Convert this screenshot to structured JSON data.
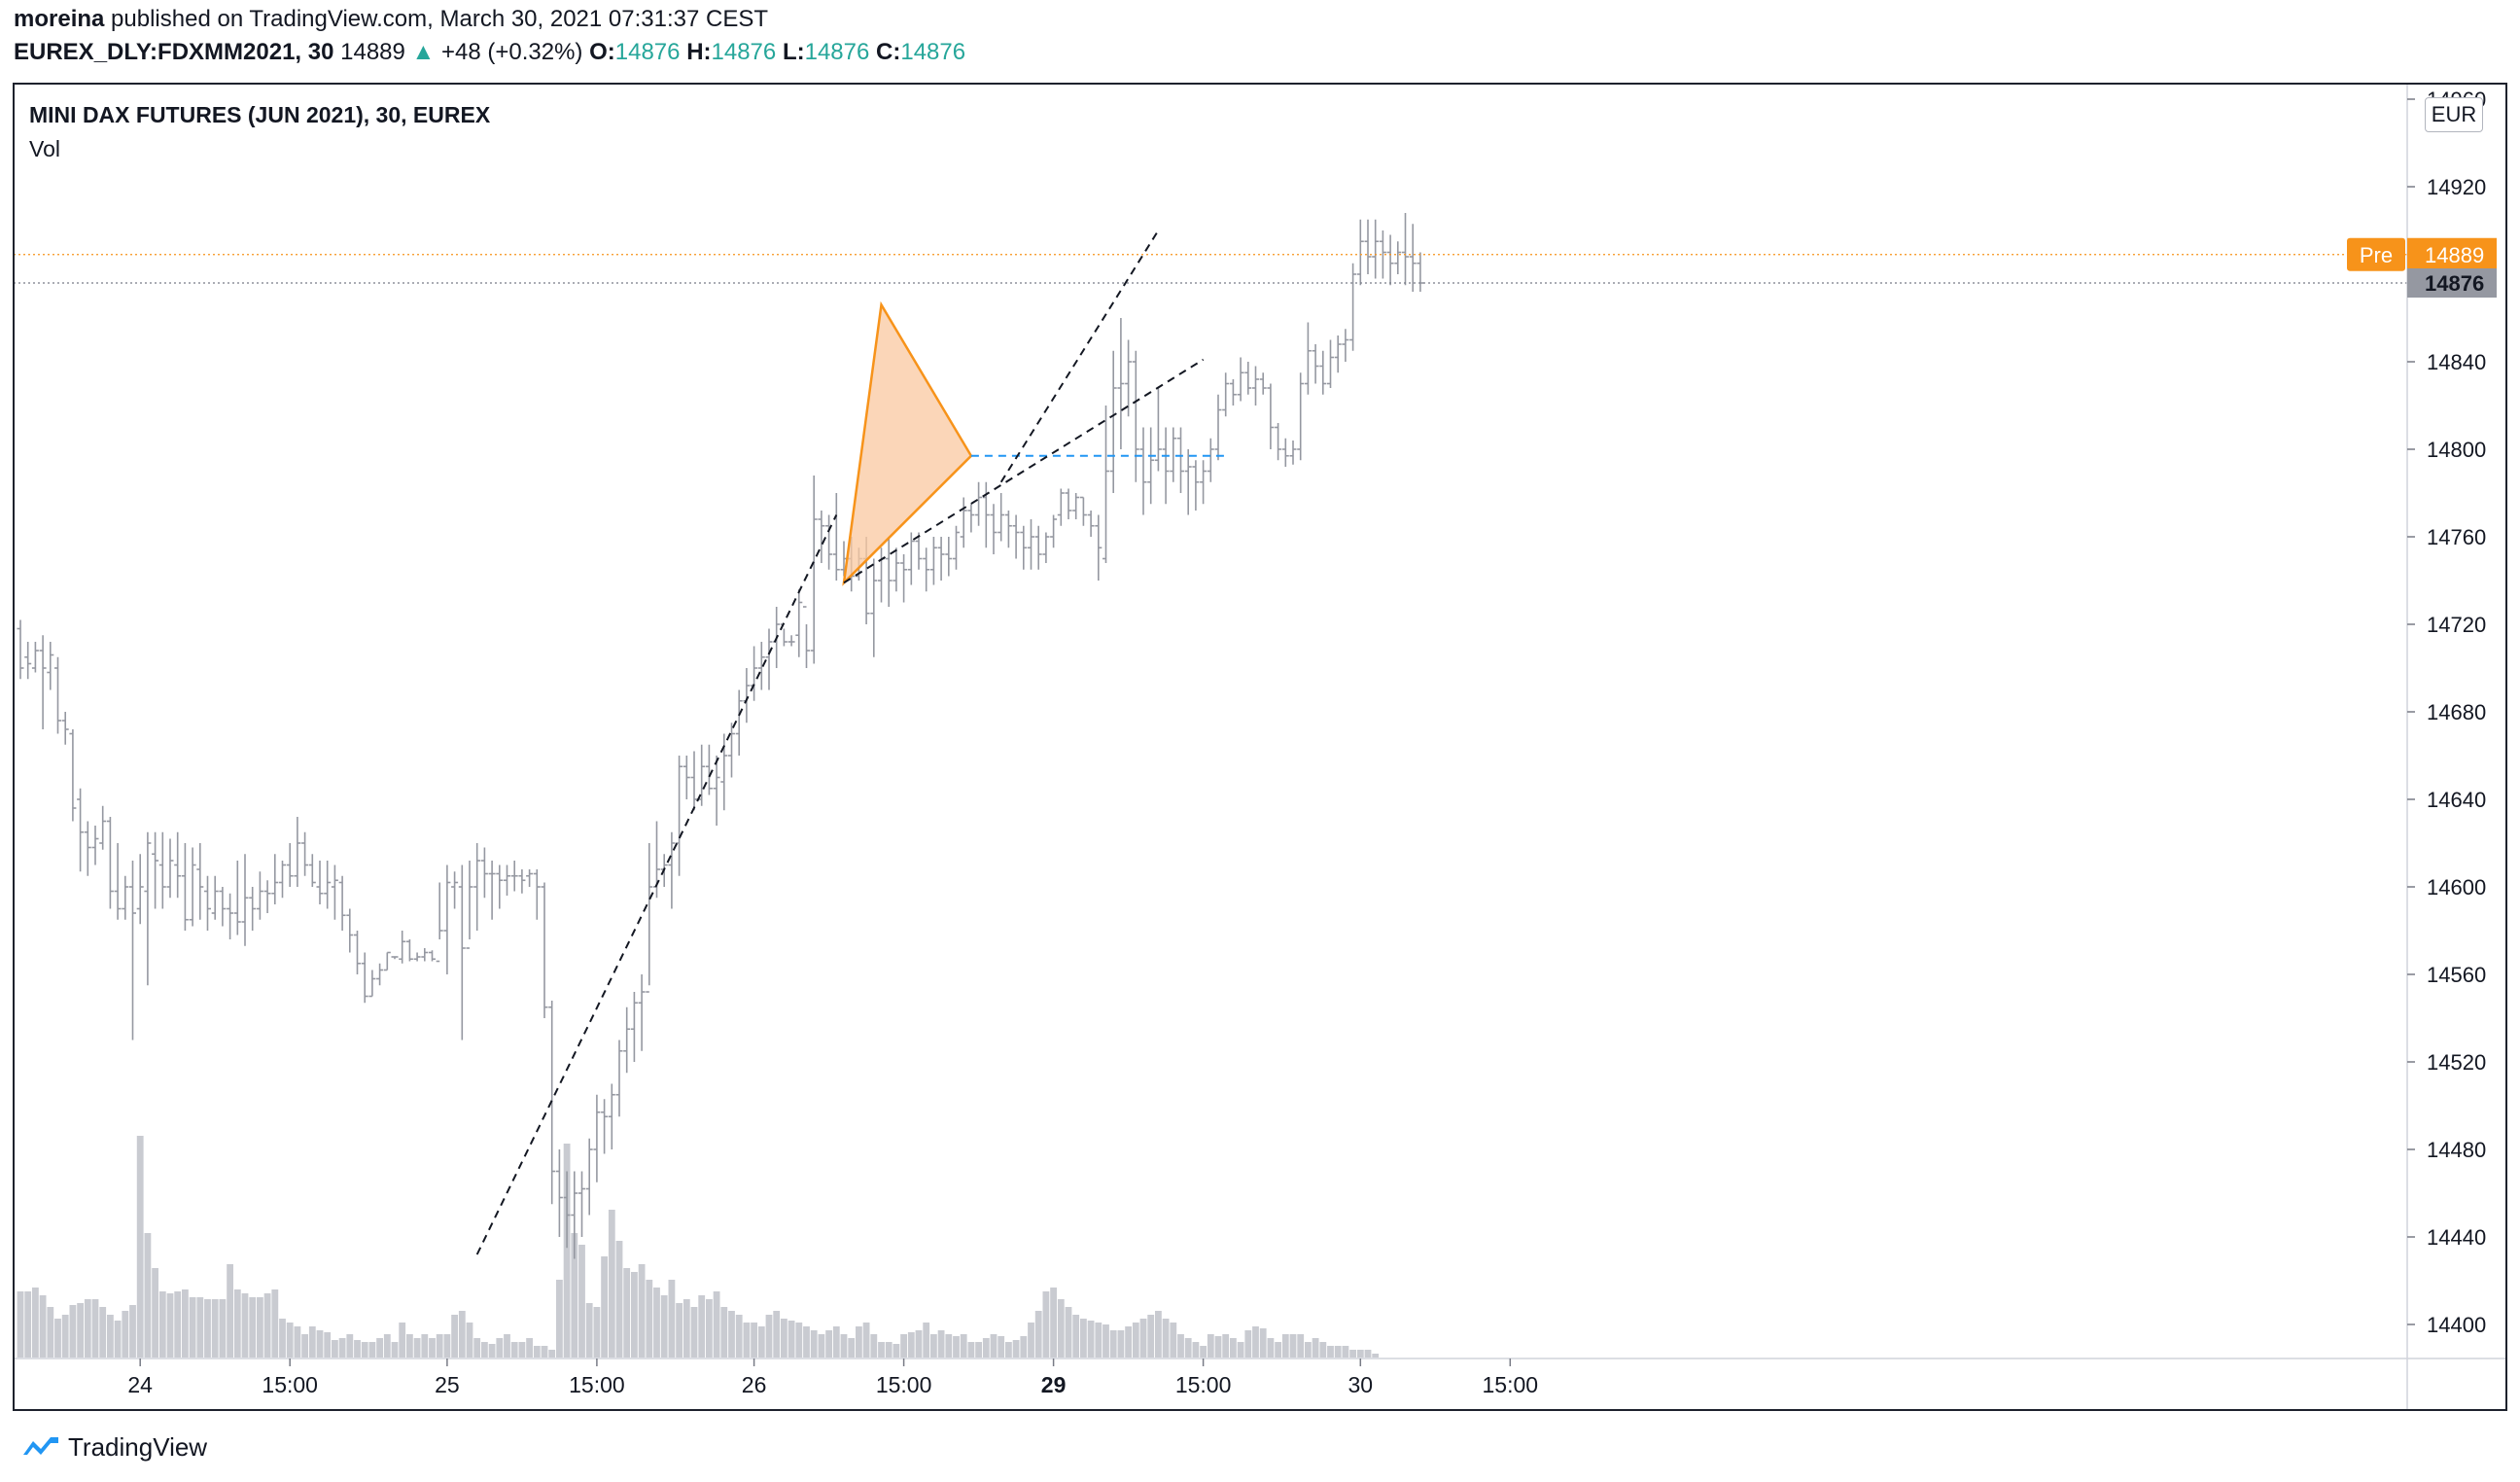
{
  "header": {
    "author": "moreina",
    "published_text": "published on TradingView.com, March 30, 2021 07:31:37 CEST",
    "symbol": "EUREX_DLY:FDXMM2021, 30",
    "last_price": "14889",
    "change": "+48 (+0.32%)",
    "o_label": "O:",
    "o_value": "14876",
    "h_label": "H:",
    "h_value": "14876",
    "l_label": "L:",
    "l_value": "14876",
    "c_label": "C:",
    "c_value": "14876"
  },
  "legend": {
    "title": "MINI DAX FUTURES (JUN 2021), 30, EUREX",
    "indicator": "Vol"
  },
  "currency": "EUR",
  "price_labels": {
    "pre_tag": "Pre",
    "pre_price": "14889",
    "last_price": "14876"
  },
  "brand": "TradingView",
  "colors": {
    "bar": "#9598a1",
    "volume": "#c9cbd1",
    "pre_line": "#f7931a",
    "last_tag": "#9598a1",
    "triangle_fill": "#f9c8a0",
    "triangle_stroke": "#f7931a",
    "horizontal_ray": "#2196f3",
    "trendline": "#131722",
    "accent_up": "#26a69a"
  },
  "chart_data": {
    "type": "bar",
    "subtype": "ohlc",
    "title": "MINI DAX FUTURES (JUN 2021), 30, EUREX",
    "currency": "EUR",
    "y_ticks": [
      14400,
      14440,
      14480,
      14520,
      14560,
      14600,
      14640,
      14680,
      14720,
      14760,
      14800,
      14840,
      14880,
      14920,
      14960
    ],
    "y_tick_labels": [
      "14400",
      "14440",
      "14480",
      "14520",
      "14560",
      "14600",
      "14640",
      "14680",
      "14720",
      "14760",
      "14800",
      "14840",
      "",
      "14920",
      "14960"
    ],
    "x_ticks": [
      {
        "label": "24",
        "bar": 16,
        "bold": false
      },
      {
        "label": "15:00",
        "bar": 36,
        "bold": false
      },
      {
        "label": "25",
        "bar": 57,
        "bold": false
      },
      {
        "label": "15:00",
        "bar": 77,
        "bold": false
      },
      {
        "label": "26",
        "bar": 98,
        "bold": false
      },
      {
        "label": "15:00",
        "bar": 118,
        "bold": false
      },
      {
        "label": "29",
        "bar": 138,
        "bold": true
      },
      {
        "label": "15:00",
        "bar": 158,
        "bold": false
      },
      {
        "label": "30",
        "bar": 179,
        "bold": false
      },
      {
        "label": "15:00",
        "bar": 199,
        "bold": false
      }
    ],
    "ohlc": [
      [
        14718,
        14700,
        14722,
        14695
      ],
      [
        14705,
        14702,
        14712,
        14695
      ],
      [
        14700,
        14708,
        14712,
        14698
      ],
      [
        14708,
        14700,
        14715,
        14672
      ],
      [
        14698,
        14706,
        14712,
        14690
      ],
      [
        14700,
        14676,
        14705,
        14670
      ],
      [
        14676,
        14672,
        14680,
        14665
      ],
      [
        14670,
        14636,
        14672,
        14630
      ],
      [
        14640,
        14625,
        14645,
        14607
      ],
      [
        14625,
        14618,
        14630,
        14605
      ],
      [
        14618,
        14622,
        14628,
        14610
      ],
      [
        14620,
        14630,
        14637,
        14617
      ],
      [
        14630,
        14598,
        14632,
        14590
      ],
      [
        14598,
        14590,
        14620,
        14585
      ],
      [
        14590,
        14600,
        14605,
        14585
      ],
      [
        14600,
        14588,
        14612,
        14530
      ],
      [
        14590,
        14600,
        14615,
        14583
      ],
      [
        14598,
        14620,
        14625,
        14555
      ],
      [
        14615,
        14612,
        14625,
        14590
      ],
      [
        14610,
        14600,
        14625,
        14590
      ],
      [
        14600,
        14612,
        14622,
        14595
      ],
      [
        14610,
        14605,
        14625,
        14595
      ],
      [
        14605,
        14585,
        14620,
        14580
      ],
      [
        14585,
        14610,
        14618,
        14582
      ],
      [
        14608,
        14600,
        14620,
        14585
      ],
      [
        14598,
        14590,
        14605,
        14580
      ],
      [
        14588,
        14598,
        14605,
        14585
      ],
      [
        14598,
        14590,
        14600,
        14582
      ],
      [
        14590,
        14588,
        14597,
        14576
      ],
      [
        14588,
        14584,
        14612,
        14578
      ],
      [
        14584,
        14595,
        14615,
        14573
      ],
      [
        14595,
        14590,
        14600,
        14580
      ],
      [
        14590,
        14598,
        14607,
        14585
      ],
      [
        14598,
        14597,
        14603,
        14588
      ],
      [
        14597,
        14602,
        14615,
        14592
      ],
      [
        14602,
        14610,
        14612,
        14595
      ],
      [
        14610,
        14605,
        14620,
        14600
      ],
      [
        14605,
        14620,
        14632,
        14600
      ],
      [
        14620,
        14610,
        14625,
        14605
      ],
      [
        14610,
        14602,
        14615,
        14600
      ],
      [
        14600,
        14597,
        14612,
        14592
      ],
      [
        14597,
        14602,
        14612,
        14590
      ],
      [
        14600,
        14603,
        14610,
        14585
      ],
      [
        14602,
        14587,
        14605,
        14580
      ],
      [
        14587,
        14578,
        14590,
        14570
      ],
      [
        14578,
        14565,
        14580,
        14560
      ],
      [
        14565,
        14550,
        14570,
        14547
      ],
      [
        14550,
        14558,
        14562,
        14550
      ],
      [
        14558,
        14562,
        14565,
        14555
      ],
      [
        14562,
        14570,
        14570,
        14562
      ],
      [
        14568,
        14568,
        14568,
        14567
      ],
      [
        14567,
        14575,
        14580,
        14565
      ],
      [
        14575,
        14567,
        14576,
        14566
      ],
      [
        14567,
        14568,
        14570,
        14566
      ],
      [
        14568,
        14570,
        14572,
        14566
      ],
      [
        14570,
        14567,
        14571,
        14566
      ],
      [
        14566,
        14580,
        14602,
        14576
      ],
      [
        14580,
        14602,
        14610,
        14560
      ],
      [
        14600,
        14602,
        14607,
        14590
      ],
      [
        14600,
        14572,
        14610,
        14530
      ],
      [
        14572,
        14600,
        14612,
        14576
      ],
      [
        14600,
        14612,
        14620,
        14580
      ],
      [
        14612,
        14606,
        14618,
        14595
      ],
      [
        14606,
        14606,
        14612,
        14585
      ],
      [
        14606,
        14603,
        14610,
        14590
      ],
      [
        14603,
        14605,
        14610,
        14596
      ],
      [
        14605,
        14605,
        14612,
        14598
      ],
      [
        14605,
        14603,
        14608,
        14597
      ],
      [
        14605,
        14606,
        14608,
        14600
      ],
      [
        14606,
        14600,
        14608,
        14585
      ],
      [
        14600,
        14545,
        14602,
        14540
      ],
      [
        14545,
        14470,
        14548,
        14455
      ],
      [
        14470,
        14458,
        14480,
        14440
      ],
      [
        14458,
        14450,
        14470,
        14435
      ],
      [
        14450,
        14460,
        14470,
        14430
      ],
      [
        14460,
        14462,
        14470,
        14440
      ],
      [
        14462,
        14480,
        14485,
        14450
      ],
      [
        14480,
        14497,
        14505,
        14465
      ],
      [
        14497,
        14495,
        14503,
        14478
      ],
      [
        14495,
        14505,
        14510,
        14480
      ],
      [
        14505,
        14525,
        14530,
        14495
      ],
      [
        14525,
        14535,
        14545,
        14515
      ],
      [
        14535,
        14547,
        14552,
        14520
      ],
      [
        14547,
        14552,
        14560,
        14525
      ],
      [
        14552,
        14600,
        14620,
        14555
      ],
      [
        14600,
        14608,
        14630,
        14595
      ],
      [
        14608,
        14610,
        14615,
        14600
      ],
      [
        14610,
        14620,
        14625,
        14590
      ],
      [
        14620,
        14655,
        14660,
        14605
      ],
      [
        14655,
        14650,
        14660,
        14640
      ],
      [
        14650,
        14640,
        14662,
        14635
      ],
      [
        14640,
        14655,
        14665,
        14637
      ],
      [
        14655,
        14645,
        14665,
        14642
      ],
      [
        14645,
        14650,
        14660,
        14628
      ],
      [
        14648,
        14660,
        14670,
        14635
      ],
      [
        14660,
        14670,
        14675,
        14650
      ],
      [
        14670,
        14685,
        14690,
        14660
      ],
      [
        14685,
        14692,
        14700,
        14675
      ],
      [
        14692,
        14700,
        14710,
        14685
      ],
      [
        14700,
        14705,
        14712,
        14690
      ],
      [
        14705,
        14712,
        14718,
        14690
      ],
      [
        14712,
        14720,
        14728,
        14700
      ],
      [
        14720,
        14712,
        14718,
        14710
      ],
      [
        14712,
        14712,
        14715,
        14710
      ],
      [
        14715,
        14730,
        14736,
        14705
      ],
      [
        14728,
        14708,
        14720,
        14700
      ],
      [
        14708,
        14768,
        14788,
        14702
      ],
      [
        14768,
        14765,
        14772,
        14748
      ],
      [
        14765,
        14752,
        14770,
        14745
      ],
      [
        14752,
        14745,
        14780,
        14740
      ],
      [
        14745,
        14750,
        14758,
        14742
      ],
      [
        14750,
        14742,
        14760,
        14735
      ],
      [
        14742,
        14750,
        14755,
        14740
      ],
      [
        14750,
        14725,
        14760,
        14720
      ],
      [
        14725,
        14740,
        14750,
        14705
      ],
      [
        14740,
        14750,
        14755,
        14730
      ],
      [
        14750,
        14740,
        14760,
        14728
      ],
      [
        14740,
        14748,
        14755,
        14735
      ],
      [
        14748,
        14745,
        14752,
        14730
      ],
      [
        14745,
        14758,
        14762,
        14738
      ],
      [
        14758,
        14750,
        14762,
        14745
      ],
      [
        14750,
        14745,
        14755,
        14735
      ],
      [
        14745,
        14755,
        14760,
        14738
      ],
      [
        14755,
        14752,
        14760,
        14740
      ],
      [
        14752,
        14750,
        14760,
        14742
      ],
      [
        14750,
        14762,
        14765,
        14745
      ],
      [
        14760,
        14772,
        14778,
        14755
      ],
      [
        14772,
        14770,
        14775,
        14762
      ],
      [
        14770,
        14778,
        14785,
        14765
      ],
      [
        14778,
        14770,
        14785,
        14755
      ],
      [
        14770,
        14762,
        14775,
        14752
      ],
      [
        14762,
        14770,
        14780,
        14758
      ],
      [
        14770,
        14765,
        14772,
        14755
      ],
      [
        14765,
        14762,
        14770,
        14750
      ],
      [
        14762,
        14755,
        14765,
        14745
      ],
      [
        14755,
        14760,
        14768,
        14745
      ],
      [
        14760,
        14752,
        14765,
        14745
      ],
      [
        14752,
        14760,
        14762,
        14748
      ],
      [
        14760,
        14768,
        14770,
        14755
      ],
      [
        14770,
        14780,
        14782,
        14765
      ],
      [
        14780,
        14772,
        14782,
        14768
      ],
      [
        14772,
        14778,
        14780,
        14768
      ],
      [
        14778,
        14770,
        14778,
        14765
      ],
      [
        14770,
        14765,
        14772,
        14760
      ],
      [
        14765,
        14755,
        14770,
        14740
      ],
      [
        14750,
        14790,
        14820,
        14748
      ],
      [
        14790,
        14828,
        14845,
        14780
      ],
      [
        14828,
        14830,
        14860,
        14800
      ],
      [
        14830,
        14840,
        14850,
        14815
      ],
      [
        14840,
        14800,
        14845,
        14785
      ],
      [
        14800,
        14785,
        14810,
        14770
      ],
      [
        14785,
        14795,
        14810,
        14775
      ],
      [
        14795,
        14800,
        14828,
        14790
      ],
      [
        14800,
        14790,
        14810,
        14775
      ],
      [
        14790,
        14805,
        14810,
        14785
      ],
      [
        14805,
        14790,
        14810,
        14780
      ],
      [
        14790,
        14792,
        14800,
        14770
      ],
      [
        14792,
        14785,
        14795,
        14772
      ],
      [
        14785,
        14790,
        14795,
        14775
      ],
      [
        14790,
        14800,
        14805,
        14785
      ],
      [
        14800,
        14818,
        14825,
        14795
      ],
      [
        14818,
        14830,
        14835,
        14815
      ],
      [
        14830,
        14825,
        14832,
        14820
      ],
      [
        14825,
        14835,
        14842,
        14822
      ],
      [
        14835,
        14828,
        14840,
        14825
      ],
      [
        14828,
        14832,
        14838,
        14820
      ],
      [
        14832,
        14828,
        14835,
        14825
      ],
      [
        14828,
        14810,
        14830,
        14800
      ],
      [
        14810,
        14800,
        14812,
        14795
      ],
      [
        14800,
        14797,
        14805,
        14792
      ],
      [
        14797,
        14800,
        14804,
        14793
      ],
      [
        14800,
        14830,
        14835,
        14795
      ],
      [
        14830,
        14845,
        14858,
        14825
      ],
      [
        14845,
        14838,
        14848,
        14830
      ],
      [
        14838,
        14830,
        14845,
        14825
      ],
      [
        14830,
        14842,
        14850,
        14828
      ],
      [
        14842,
        14848,
        14852,
        14835
      ],
      [
        14848,
        14850,
        14855,
        14840
      ],
      [
        14850,
        14880,
        14885,
        14845
      ],
      [
        14880,
        14895,
        14905,
        14875
      ],
      [
        14895,
        14888,
        14905,
        14880
      ],
      [
        14888,
        14895,
        14905,
        14878
      ],
      [
        14895,
        14890,
        14900,
        14878
      ],
      [
        14890,
        14885,
        14898,
        14875
      ],
      [
        14885,
        14890,
        14895,
        14880
      ],
      [
        14890,
        14888,
        14908,
        14875
      ],
      [
        14888,
        14885,
        14903,
        14872
      ],
      [
        14885,
        14876,
        14890,
        14872
      ]
    ],
    "volume": [
      170,
      170,
      180,
      160,
      130,
      100,
      110,
      135,
      140,
      150,
      150,
      130,
      110,
      95,
      120,
      135,
      570,
      320,
      230,
      170,
      165,
      170,
      175,
      155,
      155,
      150,
      150,
      150,
      240,
      175,
      165,
      155,
      155,
      165,
      175,
      100,
      90,
      80,
      60,
      80,
      70,
      65,
      45,
      50,
      60,
      45,
      40,
      40,
      50,
      60,
      40,
      90,
      60,
      50,
      60,
      50,
      60,
      60,
      110,
      120,
      90,
      50,
      40,
      35,
      50,
      60,
      40,
      40,
      50,
      30,
      30,
      20,
      200,
      550,
      320,
      290,
      140,
      130,
      260,
      380,
      300,
      230,
      220,
      240,
      200,
      180,
      160,
      200,
      140,
      150,
      130,
      160,
      150,
      170,
      130,
      120,
      110,
      90,
      90,
      80,
      110,
      120,
      100,
      95,
      90,
      80,
      70,
      60,
      70,
      80,
      60,
      50,
      80,
      90,
      60,
      40,
      40,
      35,
      60,
      65,
      70,
      90,
      60,
      70,
      60,
      55,
      60,
      40,
      40,
      50,
      60,
      55,
      40,
      45,
      55,
      90,
      120,
      170,
      180,
      150,
      130,
      110,
      100,
      95,
      90,
      85,
      70,
      70,
      80,
      90,
      100,
      110,
      120,
      100,
      90,
      60,
      50,
      40,
      30,
      60,
      55,
      60,
      50,
      40,
      70,
      80,
      75,
      50,
      40,
      60,
      60,
      60,
      40,
      50,
      40,
      30,
      30,
      30,
      20,
      20,
      20,
      10
    ],
    "pre_market_price": 14889,
    "last_price": 14876,
    "drawings": {
      "triangle": [
        [
          110,
          14739
        ],
        [
          115,
          14866
        ],
        [
          127,
          14797
        ]
      ],
      "horizontal_ray": {
        "price": 14797,
        "from_bar": 127,
        "to_bar": 161
      },
      "trendlines": [
        {
          "from": [
            61,
            14432
          ],
          "to": [
            109,
            14770
          ]
        },
        {
          "from": [
            110,
            14739
          ],
          "to": [
            158,
            14841
          ]
        },
        {
          "from": [
            131,
            14785
          ],
          "to": [
            152,
            14900
          ]
        }
      ]
    }
  }
}
